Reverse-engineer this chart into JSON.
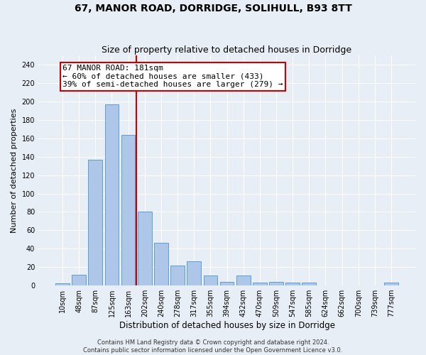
{
  "title": "67, MANOR ROAD, DORRIDGE, SOLIHULL, B93 8TT",
  "subtitle": "Size of property relative to detached houses in Dorridge",
  "xlabel": "Distribution of detached houses by size in Dorridge",
  "ylabel": "Number of detached properties",
  "categories": [
    "10sqm",
    "48sqm",
    "87sqm",
    "125sqm",
    "163sqm",
    "202sqm",
    "240sqm",
    "278sqm",
    "317sqm",
    "355sqm",
    "394sqm",
    "432sqm",
    "470sqm",
    "509sqm",
    "547sqm",
    "585sqm",
    "624sqm",
    "662sqm",
    "700sqm",
    "739sqm",
    "777sqm"
  ],
  "values": [
    2,
    12,
    137,
    197,
    164,
    80,
    46,
    22,
    26,
    11,
    4,
    11,
    3,
    4,
    3,
    3,
    0,
    0,
    0,
    0,
    3
  ],
  "bar_color": "#aec6e8",
  "bar_edgecolor": "#5a9fd4",
  "vline_x": 4.5,
  "vline_color": "#cc0000",
  "annotation_text": "67 MANOR ROAD: 181sqm\n← 60% of detached houses are smaller (433)\n39% of semi-detached houses are larger (279) →",
  "annotation_box_color": "#ffffff",
  "annotation_box_edgecolor": "#cc0000",
  "ylim": [
    0,
    250
  ],
  "yticks": [
    0,
    20,
    40,
    60,
    80,
    100,
    120,
    140,
    160,
    180,
    200,
    220,
    240
  ],
  "background_color": "#e8eef5",
  "grid_color": "#ffffff",
  "footer_line1": "Contains HM Land Registry data © Crown copyright and database right 2024.",
  "footer_line2": "Contains public sector information licensed under the Open Government Licence v3.0.",
  "title_fontsize": 10,
  "subtitle_fontsize": 9,
  "xlabel_fontsize": 8.5,
  "ylabel_fontsize": 8,
  "tick_fontsize": 7,
  "annotation_fontsize": 8,
  "footer_fontsize": 6
}
